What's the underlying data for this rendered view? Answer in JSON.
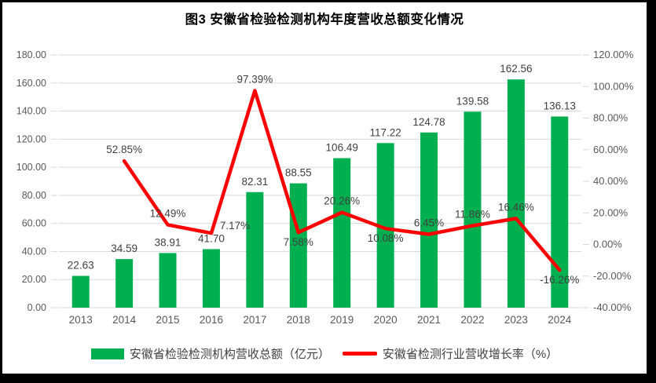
{
  "title": "图3 安徽省检验检测机构年度营收总额变化情况",
  "legend": {
    "bar_label": "安徽省检验检测机构营收总额（亿元）",
    "line_label": "安徽省检测行业营收增长率（%）"
  },
  "colors": {
    "bar": "#00B050",
    "line": "#FF0000",
    "grid": "#D9D9D9",
    "tick_text": "#595959",
    "data_label": "#404040",
    "frame": "#000000",
    "background": "#FFFFFF"
  },
  "chart_data": {
    "type": "bar",
    "subtype": "combo-bar-line-dual-axis",
    "title": "图3 安徽省检验检测机构年度营收总额变化情况",
    "categories": [
      "2013",
      "2014",
      "2015",
      "2016",
      "2017",
      "2018",
      "2019",
      "2020",
      "2021",
      "2022",
      "2023",
      "2024"
    ],
    "series": [
      {
        "name": "安徽省检验检测机构营收总额（亿元）",
        "type": "bar",
        "axis": "left",
        "color": "#00B050",
        "values": [
          22.63,
          34.59,
          38.91,
          41.7,
          82.31,
          88.55,
          106.49,
          117.22,
          124.78,
          139.58,
          162.56,
          136.13
        ]
      },
      {
        "name": "安徽省检测行业营收增长率（%）",
        "type": "line",
        "axis": "right",
        "color": "#FF0000",
        "values": [
          null,
          52.85,
          12.49,
          7.17,
          97.39,
          7.58,
          20.26,
          10.08,
          6.45,
          11.86,
          16.46,
          -16.26
        ]
      }
    ],
    "left_axis": {
      "min": 0,
      "max": 180,
      "step": 20,
      "tick_labels": [
        "180.00",
        "160.00",
        "140.00",
        "120.00",
        "100.00",
        "80.00",
        "60.00",
        "40.00",
        "20.00",
        "0.00"
      ]
    },
    "right_axis": {
      "min": -40,
      "max": 120,
      "step": 20,
      "tick_labels": [
        "120.00%",
        "100.00%",
        "80.00%",
        "60.00%",
        "40.00%",
        "20.00%",
        "0.00%",
        "-20.00%",
        "-40.00%"
      ]
    },
    "grid": true,
    "legend_position": "bottom",
    "line_label_placement": [
      null,
      "above",
      "above",
      "right",
      "above",
      "below",
      "above",
      "below",
      "above",
      "above",
      "above",
      "below"
    ]
  }
}
